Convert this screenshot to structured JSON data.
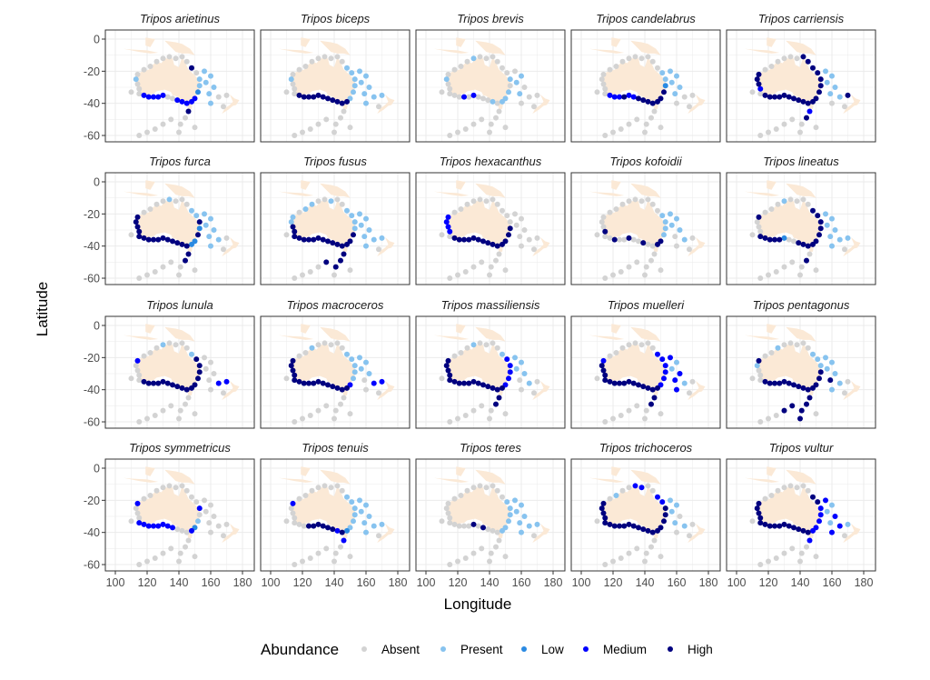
{
  "chart_data": {
    "type": "scatter",
    "layout": "faceted map, 4 rows x 5 columns",
    "xlabel": "Longitude",
    "ylabel": "Latitude",
    "xlim": [
      94,
      187
    ],
    "ylim": [
      -64,
      5.7
    ],
    "x_ticks": [
      100,
      120,
      140,
      160,
      180
    ],
    "y_ticks": [
      0,
      -20,
      -40,
      -60
    ],
    "grid": true,
    "legend": {
      "title": "Abundance",
      "placement": "bottom",
      "entries": [
        {
          "code": "A",
          "label": "Absent",
          "color": "#d3d3d3"
        },
        {
          "code": "P",
          "label": "Present",
          "color": "#87c3ef"
        },
        {
          "code": "L",
          "label": "Low",
          "color": "#2a8ae2"
        },
        {
          "code": "M",
          "label": "Medium",
          "color": "#0000ff"
        },
        {
          "code": "H",
          "label": "High",
          "color": "#00007f"
        }
      ]
    },
    "land_color": "#fbe9d6",
    "land": [
      [
        [
          114,
          -22
        ],
        [
          116,
          -20.5
        ],
        [
          121,
          -19
        ],
        [
          123,
          -16.5
        ],
        [
          126,
          -14
        ],
        [
          129,
          -15
        ],
        [
          131,
          -12
        ],
        [
          136,
          -12
        ],
        [
          137,
          -16
        ],
        [
          140,
          -17.5
        ],
        [
          142,
          -11
        ],
        [
          144,
          -14.5
        ],
        [
          146,
          -19
        ],
        [
          150,
          -22.5
        ],
        [
          153,
          -26
        ],
        [
          153,
          -31
        ],
        [
          150,
          -37
        ],
        [
          146,
          -39
        ],
        [
          141,
          -38
        ],
        [
          138,
          -35.5
        ],
        [
          136,
          -35
        ],
        [
          135,
          -33
        ],
        [
          131,
          -31.5
        ],
        [
          126,
          -32.5
        ],
        [
          124,
          -34
        ],
        [
          118,
          -35
        ],
        [
          115,
          -34
        ],
        [
          115,
          -31
        ],
        [
          113,
          -26
        ]
      ],
      [
        [
          172,
          -34.5
        ],
        [
          175,
          -37
        ],
        [
          178,
          -38
        ],
        [
          176,
          -41
        ],
        [
          174,
          -41.5
        ],
        [
          171,
          -44
        ],
        [
          167,
          -46.5
        ],
        [
          169,
          -43
        ],
        [
          172,
          -41
        ],
        [
          174,
          -39
        ]
      ],
      [
        [
          131,
          -1
        ],
        [
          138,
          -2
        ],
        [
          142,
          -3
        ],
        [
          147,
          -6
        ],
        [
          150,
          -10
        ],
        [
          146,
          -9
        ],
        [
          142,
          -9
        ],
        [
          138,
          -8
        ],
        [
          134,
          -4
        ]
      ],
      [
        [
          105,
          -6
        ],
        [
          115,
          -8
        ],
        [
          122,
          -9
        ],
        [
          127,
          -8.5
        ],
        [
          120,
          -7
        ],
        [
          110,
          -6.5
        ]
      ],
      [
        [
          119,
          1
        ],
        [
          125,
          0
        ],
        [
          122,
          -5
        ],
        [
          119,
          -4
        ]
      ],
      [
        [
          145,
          -40.5
        ],
        [
          148.5,
          -40.5
        ],
        [
          148,
          -43.5
        ],
        [
          146,
          -43.5
        ]
      ]
    ],
    "stations": [
      [
        114,
        -22
      ],
      [
        113,
        -25
      ],
      [
        114,
        -28
      ],
      [
        115,
        -31
      ],
      [
        115,
        -34
      ],
      [
        118,
        -35
      ],
      [
        121,
        -36
      ],
      [
        124,
        -36
      ],
      [
        127,
        -36
      ],
      [
        130,
        -35
      ],
      [
        133,
        -36
      ],
      [
        136,
        -37
      ],
      [
        139,
        -38
      ],
      [
        142,
        -39
      ],
      [
        145,
        -40
      ],
      [
        148,
        -39
      ],
      [
        150,
        -37
      ],
      [
        152,
        -33
      ],
      [
        153,
        -29
      ],
      [
        153,
        -25
      ],
      [
        151,
        -21
      ],
      [
        148,
        -18
      ],
      [
        145,
        -14
      ],
      [
        142,
        -11
      ],
      [
        138,
        -12
      ],
      [
        134,
        -11
      ],
      [
        130,
        -12
      ],
      [
        126,
        -14
      ],
      [
        122,
        -17
      ],
      [
        118,
        -19
      ],
      [
        156,
        -20
      ],
      [
        160,
        -23
      ],
      [
        157,
        -27
      ],
      [
        162,
        -30
      ],
      [
        159,
        -34
      ],
      [
        165,
        -36
      ],
      [
        160,
        -40
      ],
      [
        170,
        -35
      ],
      [
        146,
        -45
      ],
      [
        144,
        -49
      ],
      [
        141,
        -53
      ],
      [
        140,
        -58
      ],
      [
        135,
        -50
      ],
      [
        130,
        -53
      ],
      [
        125,
        -56
      ],
      [
        120,
        -58
      ],
      [
        115,
        -60
      ],
      [
        150,
        -55
      ],
      [
        110,
        -33
      ],
      [
        168,
        -42
      ]
    ],
    "panels": [
      {
        "title": "Tripos arietinus",
        "levels": "APAAA MMMMMAAMMM MMLPPAHA AAAAAAA PPPPPAPA HAAAAAAAAA AA"
      },
      {
        "title": "Tripos biceps",
        "levels": "APAAA HHHHHHHHHH HPPPPPPA AAAAAAA PPPPPPPP AAAAAAAAAA AA"
      },
      {
        "title": "Tripos brevis",
        "levels": "APAAA AAMAMAAAPA PPPAPAAA AAAPAAA APPAPAAA AAAAAAAAAA AA"
      },
      {
        "title": "Tripos candelabrus",
        "levels": "AAAAA MMMHMMHHHH HHHLPPAA AAAAAAA PPPPPAAA AAAAAAAAAA AA"
      },
      {
        "title": "Tripos carriensis",
        "levels": "HHHMA HHHHHHHHHH HHHHHHHH HAAAAAA PPPPPPAH MHAAAAAAAA AA"
      },
      {
        "title": "Tripos furca",
        "levels": "HHHHH HHHHHHHHHH LLHLHPPA AAPAAAA PPPPPPPA HHAAAAAAAA AA"
      },
      {
        "title": "Tripos fusus",
        "levels": "PPHHH HHHHHHHHHH HHHPPPPA APAAPPA PPPPPPPP HHHAHAAAAA AA"
      },
      {
        "title": "Tripos hexacanthus",
        "levels": "MMMMA HHHHHHHHHH HHHHAAAA AAAAAAA AAAAAAAA AAAAAAAAAA AA"
      },
      {
        "title": "Tripos kofoidii",
        "levels": "AAAHA AHAAHAAHAA HHPPPPAA AAAAAAA PPPPAPAA AAAAAAAAAA AA"
      },
      {
        "title": "Tripos lineatus",
        "levels": "HAAAH HHHHLAAHHH HHHHHHHA AAAPAAA PPPPPPPP AHAAAAAAAA AA"
      },
      {
        "title": "Tripos lunula",
        "levels": "MAAAA HHHHHHHHHH HHHHHHPA AAAPAAA AAAAAMAM AAAAAAAAAA AA"
      },
      {
        "title": "Tripos macroceros",
        "levels": "HHHHH HHHHHHHHHH HMPPPPPA AAAAPAA PPPPAMAM AAAAAAAAAA AA"
      },
      {
        "title": "Tripos massiliensis",
        "levels": "HHHHH HHHHHHHHHH HMMMMMPA AAAPAAA PPPPAPAA HHAAAAAAAA AA"
      },
      {
        "title": "Tripos muelleri",
        "levels": "MHHHH HHHHHHHHHH HMMMMMMA AAAAAAA MPPMMPMA HHAAAAAAAA AA"
      },
      {
        "title": "Tripos pentagonus",
        "levels": "HPAAA HHHHHHHHHH HHHHPPPA AAAAPAA PPPPHPPA HHHHHHAAAA AA"
      },
      {
        "title": "Tripos symmetricus",
        "levels": "MAAAM MMMMMMMAAA MLPAMAAA AAAAAAA AAAAAAAA AAAAAAAAAA AA"
      },
      {
        "title": "Tripos tenuis",
        "levels": "MAAAA AAHHHHHHMH LPPPPPPA AAAAAAA PPPPPPPP MAAAAAAAAA AA"
      },
      {
        "title": "Tripos teres",
        "levels": "AAAAA AAAAHAHAAA PPPPPPAA AAAAAAA PPPPPPPP AAAAAAAAAA AA"
      },
      {
        "title": "Tripos trichoceros",
        "levels": "HHHHH HHHHHHHHHH HHHHHMMA AMMAAPA PPPAPPAA AAAAAAAAAA AA"
      },
      {
        "title": "Tripos vultur",
        "levels": "HHHHH HHHHHHHHHH MMMMMHHA AAAAAAA MPPMPMMP MAAAAAAAAA AA"
      }
    ]
  }
}
